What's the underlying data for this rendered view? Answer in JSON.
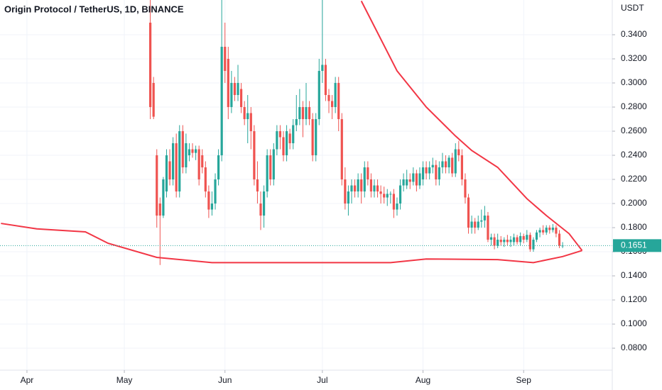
{
  "chart_data": {
    "type": "candlestick",
    "title": "Origin Protocol / TetherUS, 1D, BINANCE",
    "y_axis_label": "USDT",
    "up_color": "#26a69a",
    "down_color": "#ef5350",
    "grid": true,
    "xlim": [
      -8.3,
      180.3
    ],
    "ylim": [
      0.0618,
      0.3688
    ],
    "xticks": [
      {
        "value": 0,
        "label": "Apr"
      },
      {
        "value": 30,
        "label": "May"
      },
      {
        "value": 61,
        "label": "Jun"
      },
      {
        "value": 91,
        "label": "Jul"
      },
      {
        "value": 122,
        "label": "Aug"
      },
      {
        "value": 153,
        "label": "Sep"
      }
    ],
    "yticks": [
      {
        "value": 0.08,
        "label": "0.0800"
      },
      {
        "value": 0.1,
        "label": "0.1000"
      },
      {
        "value": 0.12,
        "label": "0.1200"
      },
      {
        "value": 0.14,
        "label": "0.1400"
      },
      {
        "value": 0.16,
        "label": "0.1600"
      },
      {
        "value": 0.18,
        "label": "0.1800"
      },
      {
        "value": 0.2,
        "label": "0.2000"
      },
      {
        "value": 0.22,
        "label": "0.2200"
      },
      {
        "value": 0.24,
        "label": "0.2400"
      },
      {
        "value": 0.26,
        "label": "0.2600"
      },
      {
        "value": 0.28,
        "label": "0.2800"
      },
      {
        "value": 0.3,
        "label": "0.3000"
      },
      {
        "value": 0.32,
        "label": "0.3200"
      },
      {
        "value": 0.34,
        "label": "0.3400"
      }
    ],
    "last_price": 0.1651,
    "last_price_color": "#26a69a",
    "x": [
      38,
      39,
      40,
      41,
      42,
      43,
      44,
      45,
      46,
      47,
      48,
      49,
      50,
      51,
      52,
      53,
      54,
      55,
      56,
      57,
      58,
      59,
      60,
      61,
      62,
      63,
      64,
      65,
      66,
      67,
      68,
      69,
      70,
      71,
      72,
      73,
      74,
      75,
      76,
      77,
      78,
      79,
      80,
      81,
      82,
      83,
      84,
      85,
      86,
      87,
      88,
      89,
      90,
      91,
      92,
      93,
      94,
      95,
      96,
      97,
      98,
      99,
      100,
      101,
      102,
      103,
      104,
      105,
      106,
      107,
      108,
      109,
      110,
      111,
      112,
      113,
      114,
      115,
      116,
      117,
      118,
      119,
      120,
      121,
      122,
      123,
      124,
      125,
      126,
      127,
      128,
      129,
      130,
      131,
      132,
      133,
      134,
      135,
      136,
      137,
      138,
      139,
      140,
      141,
      142,
      143,
      144,
      145,
      146,
      147,
      148,
      149,
      150,
      151,
      152,
      153,
      154,
      155,
      156,
      157,
      158,
      159,
      160,
      161,
      162,
      163,
      164,
      165
    ],
    "candles": [
      [
        0.35,
        0.37,
        0.27,
        0.28
      ],
      [
        0.3,
        0.305,
        0.27,
        0.272
      ],
      [
        0.24,
        0.245,
        0.18,
        0.19
      ],
      [
        0.2,
        0.205,
        0.149,
        0.19
      ],
      [
        0.19,
        0.222,
        0.188,
        0.22
      ],
      [
        0.21,
        0.245,
        0.205,
        0.24
      ],
      [
        0.235,
        0.245,
        0.215,
        0.22
      ],
      [
        0.22,
        0.255,
        0.215,
        0.25
      ],
      [
        0.25,
        0.258,
        0.205,
        0.21
      ],
      [
        0.21,
        0.265,
        0.205,
        0.26
      ],
      [
        0.26,
        0.265,
        0.225,
        0.23
      ],
      [
        0.23,
        0.258,
        0.225,
        0.25
      ],
      [
        0.24,
        0.25,
        0.235,
        0.245
      ],
      [
        0.245,
        0.25,
        0.238,
        0.242
      ],
      [
        0.242,
        0.248,
        0.236,
        0.245
      ],
      [
        0.245,
        0.248,
        0.215,
        0.22
      ],
      [
        0.24,
        0.245,
        0.225,
        0.23
      ],
      [
        0.23,
        0.235,
        0.205,
        0.21
      ],
      [
        0.21,
        0.215,
        0.188,
        0.195
      ],
      [
        0.195,
        0.21,
        0.19,
        0.2
      ],
      [
        0.2,
        0.225,
        0.195,
        0.22
      ],
      [
        0.22,
        0.245,
        0.215,
        0.24
      ],
      [
        0.24,
        0.37,
        0.235,
        0.33
      ],
      [
        0.33,
        0.35,
        0.3,
        0.31
      ],
      [
        0.32,
        0.33,
        0.27,
        0.28
      ],
      [
        0.28,
        0.31,
        0.275,
        0.3
      ],
      [
        0.3,
        0.305,
        0.285,
        0.29
      ],
      [
        0.29,
        0.315,
        0.285,
        0.3
      ],
      [
        0.295,
        0.3,
        0.275,
        0.28
      ],
      [
        0.28,
        0.285,
        0.265,
        0.27
      ],
      [
        0.27,
        0.29,
        0.25,
        0.275
      ],
      [
        0.275,
        0.28,
        0.245,
        0.26
      ],
      [
        0.26,
        0.265,
        0.215,
        0.22
      ],
      [
        0.22,
        0.235,
        0.2,
        0.21
      ],
      [
        0.2,
        0.21,
        0.178,
        0.19
      ],
      [
        0.19,
        0.215,
        0.18,
        0.21
      ],
      [
        0.21,
        0.245,
        0.205,
        0.24
      ],
      [
        0.24,
        0.245,
        0.215,
        0.22
      ],
      [
        0.22,
        0.25,
        0.215,
        0.245
      ],
      [
        0.245,
        0.265,
        0.24,
        0.26
      ],
      [
        0.26,
        0.265,
        0.245,
        0.255
      ],
      [
        0.255,
        0.26,
        0.235,
        0.24
      ],
      [
        0.24,
        0.265,
        0.235,
        0.26
      ],
      [
        0.258,
        0.262,
        0.245,
        0.25
      ],
      [
        0.25,
        0.27,
        0.245,
        0.265
      ],
      [
        0.265,
        0.29,
        0.26,
        0.27
      ],
      [
        0.27,
        0.295,
        0.265,
        0.28
      ],
      [
        0.28,
        0.285,
        0.255,
        0.27
      ],
      [
        0.27,
        0.3,
        0.265,
        0.28
      ],
      [
        0.28,
        0.285,
        0.265,
        0.27
      ],
      [
        0.27,
        0.275,
        0.235,
        0.24
      ],
      [
        0.24,
        0.275,
        0.235,
        0.27
      ],
      [
        0.27,
        0.32,
        0.265,
        0.31
      ],
      [
        0.31,
        0.37,
        0.3,
        0.315
      ],
      [
        0.315,
        0.32,
        0.285,
        0.29
      ],
      [
        0.29,
        0.295,
        0.275,
        0.285
      ],
      [
        0.285,
        0.29,
        0.27,
        0.28
      ],
      [
        0.28,
        0.305,
        0.275,
        0.3
      ],
      [
        0.3,
        0.305,
        0.26,
        0.27
      ],
      [
        0.27,
        0.275,
        0.215,
        0.22
      ],
      [
        0.22,
        0.23,
        0.195,
        0.2
      ],
      [
        0.2,
        0.215,
        0.19,
        0.21
      ],
      [
        0.21,
        0.22,
        0.2,
        0.215
      ],
      [
        0.215,
        0.22,
        0.205,
        0.21
      ],
      [
        0.21,
        0.225,
        0.205,
        0.22
      ],
      [
        0.22,
        0.225,
        0.2,
        0.21
      ],
      [
        0.21,
        0.235,
        0.205,
        0.23
      ],
      [
        0.23,
        0.235,
        0.215,
        0.22
      ],
      [
        0.22,
        0.225,
        0.205,
        0.21
      ],
      [
        0.21,
        0.22,
        0.205,
        0.215
      ],
      [
        0.215,
        0.22,
        0.205,
        0.21
      ],
      [
        0.21,
        0.215,
        0.2,
        0.208
      ],
      [
        0.208,
        0.214,
        0.2,
        0.205
      ],
      [
        0.205,
        0.212,
        0.198,
        0.208
      ],
      [
        0.208,
        0.21,
        0.2,
        0.208
      ],
      [
        0.208,
        0.212,
        0.188,
        0.195
      ],
      [
        0.195,
        0.205,
        0.19,
        0.2
      ],
      [
        0.2,
        0.22,
        0.195,
        0.215
      ],
      [
        0.215,
        0.225,
        0.21,
        0.22
      ],
      [
        0.215,
        0.228,
        0.212,
        0.22
      ],
      [
        0.22,
        0.225,
        0.212,
        0.218
      ],
      [
        0.218,
        0.23,
        0.215,
        0.225
      ],
      [
        0.225,
        0.228,
        0.21,
        0.215
      ],
      [
        0.215,
        0.23,
        0.212,
        0.225
      ],
      [
        0.22,
        0.235,
        0.215,
        0.23
      ],
      [
        0.23,
        0.235,
        0.22,
        0.225
      ],
      [
        0.225,
        0.235,
        0.22,
        0.23
      ],
      [
        0.23,
        0.238,
        0.225,
        0.232
      ],
      [
        0.232,
        0.236,
        0.215,
        0.22
      ],
      [
        0.22,
        0.235,
        0.215,
        0.23
      ],
      [
        0.23,
        0.242,
        0.225,
        0.235
      ],
      [
        0.235,
        0.24,
        0.225,
        0.23
      ],
      [
        0.23,
        0.24,
        0.225,
        0.238
      ],
      [
        0.238,
        0.242,
        0.222,
        0.225
      ],
      [
        0.225,
        0.25,
        0.222,
        0.245
      ],
      [
        0.245,
        0.252,
        0.235,
        0.24
      ],
      [
        0.24,
        0.245,
        0.215,
        0.22
      ],
      [
        0.22,
        0.225,
        0.2,
        0.205
      ],
      [
        0.205,
        0.208,
        0.175,
        0.18
      ],
      [
        0.18,
        0.19,
        0.175,
        0.185
      ],
      [
        0.185,
        0.188,
        0.175,
        0.18
      ],
      [
        0.18,
        0.19,
        0.178,
        0.185
      ],
      [
        0.185,
        0.195,
        0.18,
        0.186
      ],
      [
        0.186,
        0.198,
        0.18,
        0.19
      ],
      [
        0.19,
        0.193,
        0.168,
        0.17
      ],
      [
        0.17,
        0.175,
        0.165,
        0.172
      ],
      [
        0.172,
        0.175,
        0.162,
        0.165
      ],
      [
        0.165,
        0.175,
        0.163,
        0.17
      ],
      [
        0.17,
        0.173,
        0.165,
        0.168
      ],
      [
        0.168,
        0.172,
        0.164,
        0.17
      ],
      [
        0.17,
        0.174,
        0.165,
        0.168
      ],
      [
        0.168,
        0.173,
        0.164,
        0.17
      ],
      [
        0.168,
        0.175,
        0.165,
        0.172
      ],
      [
        0.172,
        0.174,
        0.166,
        0.168
      ],
      [
        0.168,
        0.176,
        0.165,
        0.173
      ],
      [
        0.173,
        0.175,
        0.167,
        0.17
      ],
      [
        0.17,
        0.178,
        0.168,
        0.174
      ],
      [
        0.174,
        0.176,
        0.16,
        0.162
      ],
      [
        0.162,
        0.172,
        0.16,
        0.17
      ],
      [
        0.17,
        0.178,
        0.168,
        0.176
      ],
      [
        0.176,
        0.18,
        0.172,
        0.178
      ],
      [
        0.178,
        0.182,
        0.174,
        0.176
      ],
      [
        0.176,
        0.182,
        0.174,
        0.18
      ],
      [
        0.18,
        0.182,
        0.175,
        0.178
      ],
      [
        0.178,
        0.183,
        0.176,
        0.18
      ],
      [
        0.18,
        0.182,
        0.172,
        0.175
      ],
      [
        0.175,
        0.178,
        0.163,
        0.165
      ],
      [
        0.165,
        0.168,
        0.163,
        0.1651
      ]
    ],
    "lines": [
      {
        "color": "#f23645",
        "x": [
          103,
          114,
          123,
          132,
          137,
          145,
          154,
          160,
          167,
          171
        ],
        "values": [
          0.368,
          0.31,
          0.28,
          0.256,
          0.244,
          0.23,
          0.204,
          0.19,
          0.175,
          0.161
        ]
      },
      {
        "color": "#f23645",
        "x": [
          -8,
          3,
          18,
          25,
          40,
          57,
          112,
          123,
          145,
          156,
          165,
          171
        ],
        "values": [
          0.1835,
          0.179,
          0.1765,
          0.167,
          0.1553,
          0.151,
          0.151,
          0.154,
          0.1535,
          0.151,
          0.156,
          0.161
        ]
      }
    ]
  }
}
